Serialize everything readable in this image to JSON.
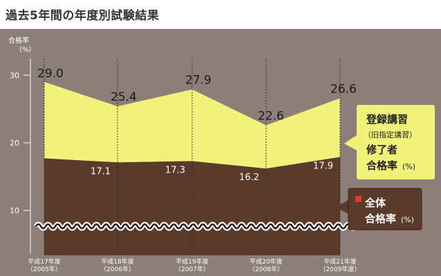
{
  "title": "過去5年間の年度別試験結果",
  "colors": {
    "panel": "#8c7f79",
    "upper_area": "#f2f27a",
    "lower_area": "#5a3a2a",
    "legend_upper_bg": "#f2f27a",
    "legend_lower_bg": "#5a3a2a",
    "marker_red": "#e03a2a"
  },
  "chart_data": {
    "type": "area",
    "ylabel": "合格率",
    "yunit": "（%）",
    "yticks": [
      "30",
      "20",
      "10"
    ],
    "ytick_values": [
      30,
      20,
      10
    ],
    "axis_break": true,
    "categories": [
      {
        "line1": "平成17年度",
        "line2": "（2005年）"
      },
      {
        "line1": "平成18年度",
        "line2": "（2006年）"
      },
      {
        "line1": "平成19年度",
        "line2": "（2007年）"
      },
      {
        "line1": "平成20年度",
        "line2": "（2008年）"
      },
      {
        "line1": "平成21年度",
        "line2": "（2009年度）"
      }
    ],
    "series": [
      {
        "name": "登録講習（旧指定講習）修了者合格率(%)",
        "values": [
          29.0,
          25.4,
          27.9,
          22.6,
          26.6
        ],
        "labels": [
          "29.0",
          "25.4",
          "27.9",
          "22.6",
          "26.6"
        ]
      },
      {
        "name": "全体合格率(%)",
        "values": [
          17.7,
          17.1,
          17.3,
          16.2,
          17.9
        ],
        "labels": [
          "",
          "17.1",
          "17.3",
          "16.2",
          "17.9"
        ]
      }
    ],
    "legend": [
      {
        "line1": "登録講習",
        "line2": "（旧指定講習）",
        "line3": "修了者",
        "line4": "合格率",
        "unit": "(%)"
      },
      {
        "line1": "全体",
        "line2": "合格率",
        "unit": "(%)"
      }
    ],
    "legend_placement": "right"
  }
}
